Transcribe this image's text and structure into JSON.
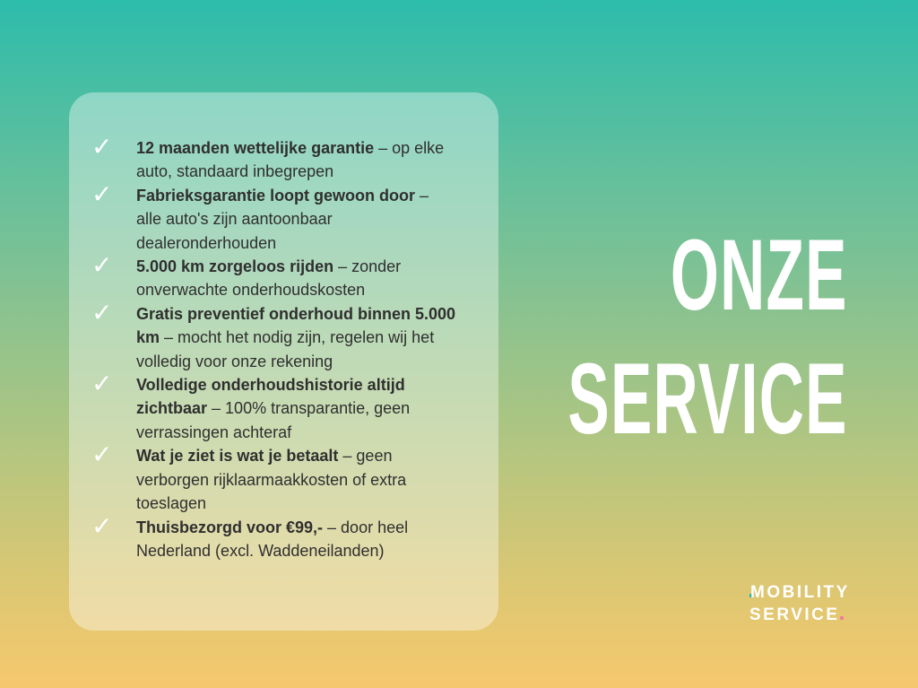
{
  "heading": {
    "line1": "ONZE",
    "line2": "SERVICE"
  },
  "items": [
    {
      "bold": "12 maanden wettelijke garantie",
      "rest": " – op elke auto, standaard inbegrepen"
    },
    {
      "bold": "Fabrieksgarantie loopt gewoon door",
      "rest": " – alle auto's zijn aantoonbaar dealeronderhouden"
    },
    {
      "bold": "5.000 km zorgeloos rijden",
      "rest": " – zonder onverwachte onderhoudskosten"
    },
    {
      "bold": "Gratis preventief onderhoud binnen 5.000 km",
      "rest": " – mocht het nodig zijn, regelen wij het volledig voor onze rekening"
    },
    {
      "bold": "Volledige onderhoudshistorie altijd zichtbaar",
      "rest": " – 100% transparantie, geen verrassingen achteraf"
    },
    {
      "bold": "Wat je ziet is wat je betaalt",
      "rest": " – geen verborgen rijklaarmaakkosten of extra toeslagen"
    },
    {
      "bold": "Thuisbezorgd voor €99,-",
      "rest": " – door heel Nederland (excl. Waddeneilanden)"
    }
  ],
  "check_icon": "✓",
  "logo": {
    "line1": "MOBILITY",
    "line2": "SERVICE",
    "accent_teal": "#1fb5a8",
    "accent_pink": "#f07ca0"
  }
}
